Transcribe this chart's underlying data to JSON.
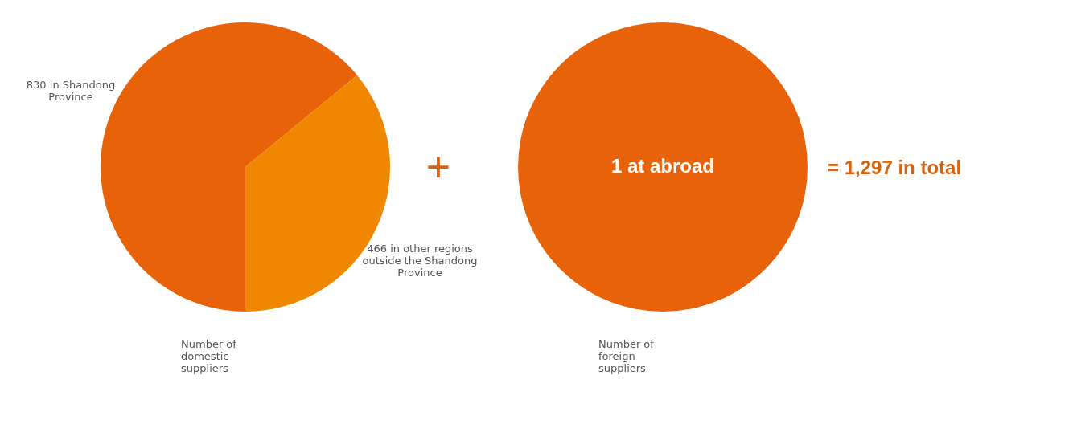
{
  "chart_data": [
    {
      "type": "pie",
      "title": "Number of domestic suppliers",
      "categories": [
        "830 in Shandong Province",
        "466 in other regions outside the Shandong Province"
      ],
      "values": [
        830,
        466
      ],
      "colors": [
        "#e8620a",
        "#f08700"
      ],
      "annotations": [
        "+"
      ]
    },
    {
      "type": "pie",
      "title": "Number of foreign suppliers",
      "categories": [
        "1 at abroad"
      ],
      "values": [
        1
      ],
      "colors": [
        "#e8620a"
      ],
      "annotations": [
        "= 1,297 in total"
      ]
    }
  ]
}
